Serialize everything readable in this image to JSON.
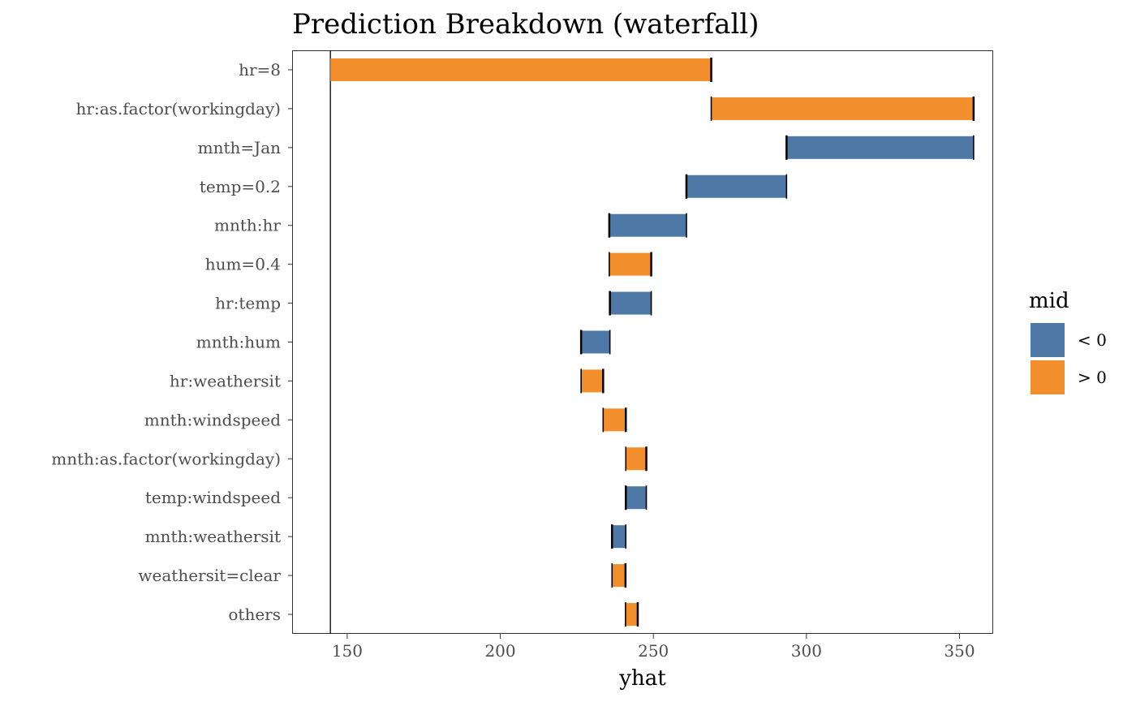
{
  "chart_data": {
    "type": "bar",
    "subtype": "waterfall",
    "orientation": "horizontal",
    "title": "Prediction Breakdown (waterfall)",
    "xlabel": "yhat",
    "ylabel": "",
    "xlim": [
      132,
      361
    ],
    "x_ticks": [
      150,
      200,
      250,
      300,
      350
    ],
    "baseline": 144.5,
    "grid": false,
    "legend": {
      "title": "mid",
      "position": "right",
      "entries": [
        {
          "label": "< 0",
          "color": "#4E79A7"
        },
        {
          "label": "> 0",
          "color": "#F28E2B"
        }
      ]
    },
    "categories": [
      "hr=8",
      "hr:as.factor(workingday)",
      "mnth=Jan",
      "temp=0.2",
      "mnth:hr",
      "hum=0.4",
      "hr:temp",
      "mnth:hum",
      "hr:weathersit",
      "mnth:windspeed",
      "mnth:as.factor(workingday)",
      "temp:windspeed",
      "mnth:weathersit",
      "weathersit=clear",
      "others"
    ],
    "bars": [
      {
        "start": 144.5,
        "end": 268.9,
        "sign": "> 0"
      },
      {
        "start": 268.9,
        "end": 354.6,
        "sign": "> 0"
      },
      {
        "start": 354.6,
        "end": 293.5,
        "sign": "< 0"
      },
      {
        "start": 293.5,
        "end": 260.8,
        "sign": "< 0"
      },
      {
        "start": 260.8,
        "end": 235.6,
        "sign": "< 0"
      },
      {
        "start": 235.6,
        "end": 249.3,
        "sign": "> 0"
      },
      {
        "start": 249.3,
        "end": 235.8,
        "sign": "< 0"
      },
      {
        "start": 235.8,
        "end": 226.4,
        "sign": "< 0"
      },
      {
        "start": 226.4,
        "end": 233.6,
        "sign": "> 0"
      },
      {
        "start": 233.6,
        "end": 241.0,
        "sign": "> 0"
      },
      {
        "start": 241.0,
        "end": 247.7,
        "sign": "> 0"
      },
      {
        "start": 247.7,
        "end": 241.0,
        "sign": "< 0"
      },
      {
        "start": 241.0,
        "end": 236.5,
        "sign": "< 0"
      },
      {
        "start": 236.5,
        "end": 240.9,
        "sign": "> 0"
      },
      {
        "start": 240.9,
        "end": 244.9,
        "sign": "> 0"
      }
    ]
  }
}
